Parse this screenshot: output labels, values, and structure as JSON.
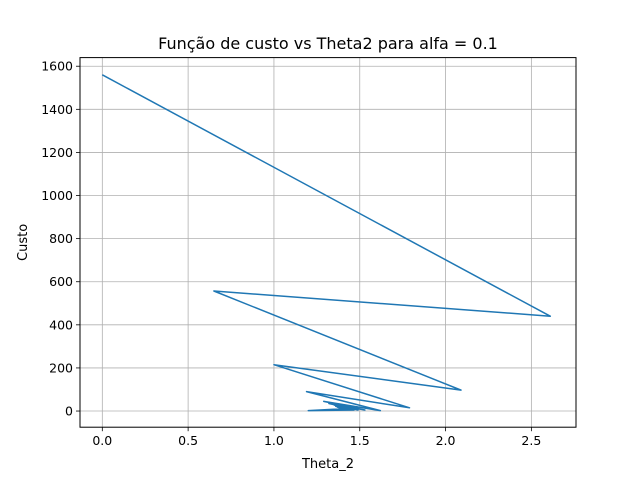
{
  "chart_data": {
    "type": "line",
    "title": "Função de custo vs Theta2 para alfa = 0.1",
    "xlabel": "Theta_2",
    "ylabel": "Custo",
    "xlim": [
      -0.13,
      2.76
    ],
    "ylim": [
      -75,
      1640
    ],
    "grid": true,
    "legend": "none",
    "x_ticks": [
      0.0,
      0.5,
      1.0,
      1.5,
      2.0,
      2.5
    ],
    "x_tick_labels": [
      "0.0",
      "0.5",
      "1.0",
      "1.5",
      "2.0",
      "2.5"
    ],
    "y_ticks": [
      0,
      200,
      400,
      600,
      800,
      1000,
      1200,
      1400,
      1600
    ],
    "y_tick_labels": [
      "0",
      "200",
      "400",
      "600",
      "800",
      "1000",
      "1200",
      "1400",
      "1600"
    ],
    "series": [
      {
        "color": "#1f77b4",
        "x": [
          0.0,
          2.61,
          0.65,
          2.09,
          1.0,
          1.79,
          1.19,
          1.62,
          1.29,
          1.53,
          1.32,
          1.49,
          1.35,
          1.46,
          1.36,
          1.44,
          1.37,
          1.43,
          1.38,
          1.42,
          1.39,
          1.2,
          1.47
        ],
        "y": [
          1560,
          440,
          557,
          97,
          215,
          15,
          90,
          2,
          45,
          5,
          35,
          5,
          28,
          5,
          22,
          5,
          18,
          5,
          14,
          5,
          10,
          2,
          5
        ]
      }
    ]
  }
}
